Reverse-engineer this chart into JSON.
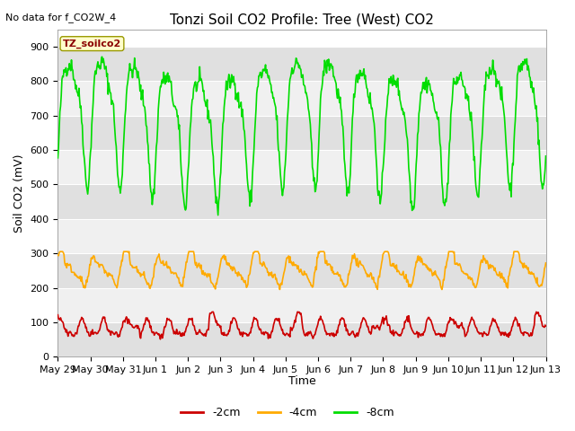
{
  "title": "Tonzi Soil CO2 Profile: Tree (West) CO2",
  "subtitle": "No data for f_CO2W_4",
  "ylabel": "Soil CO2 (mV)",
  "xlabel": "Time",
  "legend_label": "TZ_soilco2",
  "ylim": [
    0,
    950
  ],
  "yticks": [
    0,
    100,
    200,
    300,
    400,
    500,
    600,
    700,
    800,
    900
  ],
  "x_tick_labels": [
    "May 29",
    "May 30",
    "May 31",
    "Jun 1",
    "Jun 2",
    "Jun 3",
    "Jun 4",
    "Jun 5",
    "Jun 6",
    "Jun 7",
    "Jun 8",
    "Jun 9",
    "Jun 10",
    "Jun 11",
    "Jun 12",
    "Jun 13"
  ],
  "color_red": "#cc0000",
  "color_orange": "#ffaa00",
  "color_green": "#00dd00",
  "legend_items": [
    "-2cm",
    "-4cm",
    "-8cm"
  ],
  "bg_color": "#ffffff",
  "band_light": "#f0f0f0",
  "band_dark": "#e0e0e0",
  "n_days": 15,
  "seed": 42,
  "title_fontsize": 11,
  "subtitle_fontsize": 8,
  "tick_fontsize": 8,
  "label_fontsize": 9,
  "legend_fontsize": 9
}
